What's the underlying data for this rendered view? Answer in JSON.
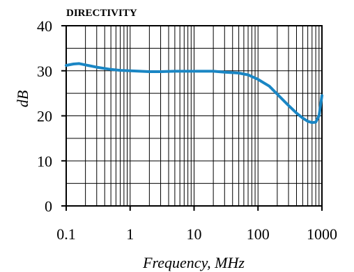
{
  "chart_data": {
    "type": "line",
    "title": "DIRECTIVITY",
    "xlabel": "Frequency, MHz",
    "ylabel": "dB",
    "xscale": "log",
    "xlim": [
      0.1,
      1000
    ],
    "ylim": [
      0,
      40
    ],
    "grid": true,
    "legend": "none",
    "x_ticks": [
      {
        "value": 0.1,
        "label": "0.1"
      },
      {
        "value": 1,
        "label": "1"
      },
      {
        "value": 10,
        "label": "10"
      },
      {
        "value": 100,
        "label": "100"
      },
      {
        "value": 1000,
        "label": "1000"
      }
    ],
    "y_ticks": [
      {
        "value": 0,
        "label": "0"
      },
      {
        "value": 10,
        "label": "10"
      },
      {
        "value": 20,
        "label": "20"
      },
      {
        "value": 30,
        "label": "30"
      },
      {
        "value": 40,
        "label": "40"
      }
    ],
    "series": [
      {
        "color": "#1a86c4",
        "x": [
          0.1,
          0.13,
          0.16,
          0.2,
          0.3,
          0.5,
          0.7,
          1,
          2,
          3,
          5,
          7,
          10,
          15,
          20,
          30,
          50,
          70,
          100,
          150,
          200,
          300,
          400,
          500,
          600,
          700,
          800,
          900,
          1000
        ],
        "y": [
          31.2,
          31.5,
          31.6,
          31.3,
          30.8,
          30.3,
          30.1,
          30.0,
          29.8,
          29.8,
          29.9,
          29.9,
          29.9,
          29.9,
          29.9,
          29.7,
          29.5,
          29.1,
          28.1,
          26.6,
          24.8,
          22.3,
          20.6,
          19.5,
          18.8,
          18.5,
          18.6,
          20.0,
          24.5
        ]
      }
    ]
  }
}
